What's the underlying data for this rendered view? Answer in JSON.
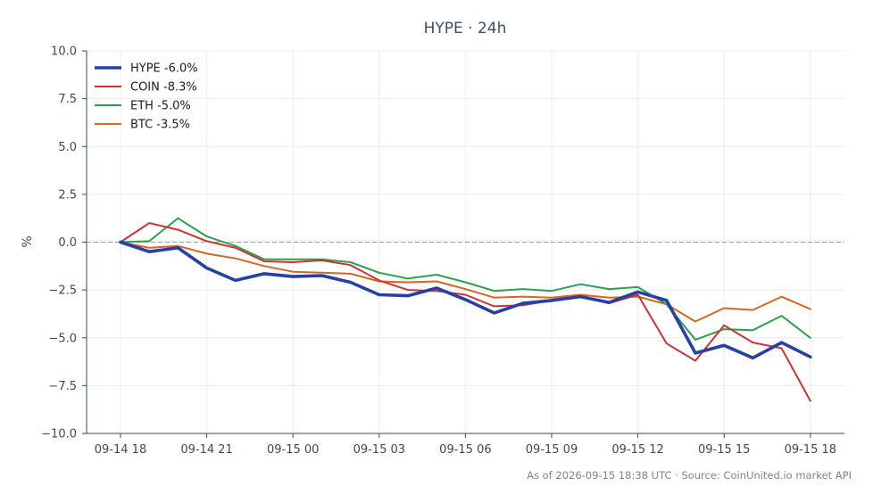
{
  "chart_data": {
    "type": "line",
    "title": "HYPE · 24h",
    "xlabel": "",
    "ylabel": "%",
    "ylim": [
      -10.0,
      10.0
    ],
    "yticks": [
      10.0,
      7.5,
      5.0,
      2.5,
      0.0,
      -2.5,
      -5.0,
      -7.5,
      -10.0
    ],
    "ytick_labels": [
      "10.0",
      "7.5",
      "5.0",
      "2.5",
      "0.0",
      "−2.5",
      "−5.0",
      "−7.5",
      "−10.0"
    ],
    "xtick_labels": [
      "09-14 18",
      "09-14 21",
      "09-15 00",
      "09-15 03",
      "09-15 06",
      "09-15 09",
      "09-15 12",
      "09-15 15",
      "09-15 18"
    ],
    "xtick_index": [
      0,
      3,
      6,
      9,
      12,
      15,
      18,
      21,
      24
    ],
    "grid": true,
    "zero_line": true,
    "legend_position": "top-left",
    "series": [
      {
        "name": "HYPE -6.0%",
        "color": "#2541a3",
        "width": 3.6,
        "values": [
          0.0,
          -0.5,
          -0.3,
          -1.35,
          -2.0,
          -1.65,
          -1.8,
          -1.75,
          -2.1,
          -2.75,
          -2.8,
          -2.4,
          -3.0,
          -3.7,
          -3.2,
          -3.05,
          -2.85,
          -3.15,
          -2.6,
          -3.05,
          -5.8,
          -5.4,
          -6.05,
          -5.25,
          -6.0
        ]
      },
      {
        "name": "COIN -8.3%",
        "color": "#cf3236",
        "width": 2,
        "values": [
          0.0,
          1.0,
          0.65,
          0.05,
          -0.3,
          -1.0,
          -1.05,
          -0.95,
          -1.2,
          -2.0,
          -2.5,
          -2.55,
          -2.75,
          -3.35,
          -3.3,
          -3.05,
          -2.85,
          -3.2,
          -2.75,
          -5.3,
          -6.2,
          -4.35,
          -5.25,
          -5.55,
          -8.3
        ]
      },
      {
        "name": "ETH -5.0%",
        "color": "#2ca04c",
        "width": 2,
        "values": [
          0.0,
          0.05,
          1.25,
          0.3,
          -0.2,
          -0.9,
          -0.9,
          -0.9,
          -1.05,
          -1.6,
          -1.9,
          -1.7,
          -2.1,
          -2.55,
          -2.45,
          -2.55,
          -2.2,
          -2.45,
          -2.35,
          -3.25,
          -5.1,
          -4.55,
          -4.6,
          -3.85,
          -5.0
        ]
      },
      {
        "name": "BTC -3.5%",
        "color": "#d9651e",
        "width": 2,
        "values": [
          0.0,
          -0.3,
          -0.2,
          -0.6,
          -0.85,
          -1.25,
          -1.55,
          -1.6,
          -1.65,
          -2.05,
          -2.1,
          -2.05,
          -2.45,
          -2.9,
          -2.85,
          -2.9,
          -2.75,
          -2.9,
          -2.85,
          -3.25,
          -4.15,
          -3.45,
          -3.55,
          -2.85,
          -3.5
        ]
      }
    ]
  },
  "footer": "As of 2026-09-15 18:38 UTC · Source: CoinUnited.io market API"
}
